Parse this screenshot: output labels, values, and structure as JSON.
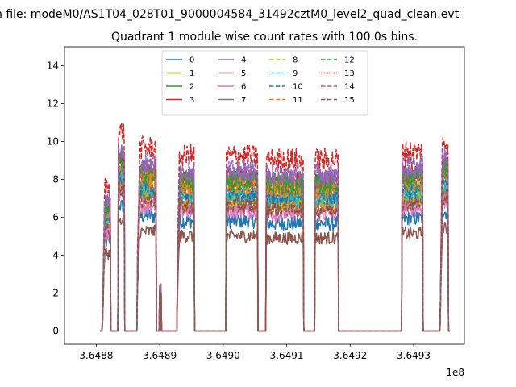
{
  "chart_data": {
    "type": "line",
    "suptitle": "n file: modeM0/AS1T04_028T01_9000004584_31492cztM0_level2_quad_clean.evt",
    "title": "Quadrant 1 module wise count rates with 100.0s bins.",
    "xlabel": "",
    "ylabel": "",
    "x_offset_label": "1e8",
    "xlim": [
      3.64875,
      3.64938
    ],
    "ylim": [
      -0.7,
      15.0
    ],
    "xticks": [
      3.6488,
      3.6489,
      3.649,
      3.6491,
      3.6492,
      3.6493
    ],
    "xtick_labels": [
      "3.6488",
      "3.6489",
      "3.6490",
      "3.6491",
      "3.6492",
      "3.6493"
    ],
    "yticks": [
      0,
      2,
      4,
      6,
      8,
      10,
      12,
      14
    ],
    "ytick_labels": [
      "0",
      "2",
      "4",
      "6",
      "8",
      "10",
      "12",
      "14"
    ],
    "legend_position": "upper center",
    "segments": [
      {
        "x0": 3.64881,
        "x1": 3.648823,
        "level": 0.72,
        "rise": "ramp_from_low"
      },
      {
        "x0": 3.648835,
        "x1": 3.648845,
        "level": 1.0,
        "rise": "step"
      },
      {
        "x0": 3.648865,
        "x1": 3.648895,
        "level": 0.92,
        "rise": "ramp_from_mid"
      },
      {
        "x0": 3.648928,
        "x1": 3.648955,
        "level": 0.88,
        "rise": "ramp_from_mid"
      },
      {
        "x0": 3.649005,
        "x1": 3.649055,
        "level": 0.88,
        "rise": "step"
      },
      {
        "x0": 3.649068,
        "x1": 3.649127,
        "level": 0.86,
        "rise": "step"
      },
      {
        "x0": 3.649145,
        "x1": 3.649182,
        "level": 0.86,
        "rise": "step"
      },
      {
        "x0": 3.649282,
        "x1": 3.649315,
        "level": 0.9,
        "rise": "step"
      },
      {
        "x0": 3.649342,
        "x1": 3.649355,
        "level": 0.95,
        "rise": "ramp_from_low"
      }
    ],
    "small_spikes": [
      {
        "x": 3.6489,
        "y": 2.2
      },
      {
        "x": 3.648902,
        "y": 2.25
      }
    ],
    "series": [
      {
        "name": "0",
        "color": "#1f77b4",
        "dash": "solid",
        "level": 6.6
      },
      {
        "name": "1",
        "color": "#ff7f0e",
        "dash": "solid",
        "level": 7.6
      },
      {
        "name": "2",
        "color": "#2ca02c",
        "dash": "solid",
        "level": 8.6
      },
      {
        "name": "3",
        "color": "#d62728",
        "dash": "solid",
        "level": 9.2
      },
      {
        "name": "4",
        "color": "#9467bd",
        "dash": "solid",
        "level": 9.3
      },
      {
        "name": "5",
        "color": "#8c564b",
        "dash": "solid",
        "level": 5.7
      },
      {
        "name": "6",
        "color": "#e377c2",
        "dash": "solid",
        "level": 7.2
      },
      {
        "name": "7",
        "color": "#7f7f7f",
        "dash": "solid",
        "level": 8.0
      },
      {
        "name": "8",
        "color": "#bcbd22",
        "dash": "dashed",
        "level": 7.9
      },
      {
        "name": "9",
        "color": "#17becf",
        "dash": "dashed",
        "level": 8.1
      },
      {
        "name": "10",
        "color": "#1f77b4",
        "dash": "dashed",
        "level": 8.3
      },
      {
        "name": "11",
        "color": "#ff7f0e",
        "dash": "dashed",
        "level": 8.7
      },
      {
        "name": "12",
        "color": "#2ca02c",
        "dash": "dashed",
        "level": 9.0
      },
      {
        "name": "13",
        "color": "#d62728",
        "dash": "dashed",
        "level": 10.5
      },
      {
        "name": "14",
        "color": "#9467bd",
        "dash": "dashed",
        "level": 9.6
      },
      {
        "name": "15",
        "color": "#8c564b",
        "dash": "dashed",
        "level": 7.5
      }
    ]
  }
}
